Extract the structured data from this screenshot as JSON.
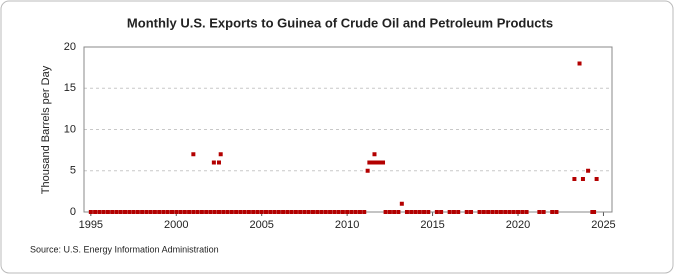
{
  "chart_data": {
    "type": "scatter",
    "title": "Monthly U.S. Exports to Guinea of Crude Oil and Petroleum Products",
    "y_label": "Thousand Barrels per Day",
    "source": "Source: U.S. Energy Information Administration",
    "color": "#b30000",
    "xlim": [
      1994.6,
      2025.5
    ],
    "ylim": [
      0,
      20
    ],
    "xticks": [
      1995,
      2000,
      2005,
      2010,
      2015,
      2020,
      2025
    ],
    "yticks": [
      0,
      5,
      10,
      15,
      20
    ],
    "grid": true,
    "x": [
      2001.0,
      2002.2,
      2002.5,
      2002.6,
      2011.2,
      2011.3,
      2011.5,
      2011.6,
      2011.7,
      2011.9,
      2012.1,
      2013.2,
      2023.3,
      2023.6,
      2023.8,
      2024.1,
      2024.6,
      1995.0,
      1995.25,
      1995.5,
      1995.75,
      1996.0,
      1996.25,
      1996.5,
      1996.75,
      1997.0,
      1997.25,
      1997.5,
      1997.75,
      1998.0,
      1998.25,
      1998.5,
      1998.75,
      1999.0,
      1999.25,
      1999.5,
      1999.75,
      2000.0,
      2000.25,
      2000.5,
      2000.75,
      2001.0,
      2001.25,
      2001.5,
      2001.75,
      2002.0,
      2002.25,
      2002.5,
      2002.75,
      2003.0,
      2003.25,
      2003.5,
      2003.75,
      2004.0,
      2004.25,
      2004.5,
      2004.75,
      2005.0,
      2005.25,
      2005.5,
      2005.75,
      2006.0,
      2006.25,
      2006.5,
      2006.75,
      2007.0,
      2007.25,
      2007.5,
      2007.75,
      2008.0,
      2008.25,
      2008.5,
      2008.75,
      2009.0,
      2009.25,
      2009.5,
      2009.75,
      2010.0,
      2010.25,
      2010.5,
      2010.75,
      2011.0,
      2012.25,
      2012.5,
      2012.75,
      2013.0,
      2013.5,
      2013.75,
      2014.0,
      2014.25,
      2014.5,
      2014.75,
      2015.25,
      2015.5,
      2016.0,
      2016.25,
      2016.5,
      2017.0,
      2017.25,
      2017.75,
      2018.0,
      2018.25,
      2018.5,
      2018.75,
      2019.0,
      2019.25,
      2019.5,
      2019.75,
      2020.0,
      2020.25,
      2020.5,
      2021.25,
      2021.5,
      2022.0,
      2022.25,
      2024.35,
      2024.45
    ],
    "values": [
      7,
      6,
      6,
      7,
      5,
      6,
      6,
      7,
      6,
      6,
      6,
      1,
      4,
      18,
      4,
      5,
      4,
      0,
      0,
      0,
      0,
      0,
      0,
      0,
      0,
      0,
      0,
      0,
      0,
      0,
      0,
      0,
      0,
      0,
      0,
      0,
      0,
      0,
      0,
      0,
      0,
      0,
      0,
      0,
      0,
      0,
      0,
      0,
      0,
      0,
      0,
      0,
      0,
      0,
      0,
      0,
      0,
      0,
      0,
      0,
      0,
      0,
      0,
      0,
      0,
      0,
      0,
      0,
      0,
      0,
      0,
      0,
      0,
      0,
      0,
      0,
      0,
      0,
      0,
      0,
      0,
      0,
      0,
      0,
      0,
      0,
      0,
      0,
      0,
      0,
      0,
      0,
      0,
      0,
      0,
      0,
      0,
      0,
      0,
      0,
      0,
      0,
      0,
      0,
      0,
      0,
      0,
      0,
      0,
      0,
      0,
      0,
      0,
      0,
      0,
      0,
      0
    ]
  }
}
